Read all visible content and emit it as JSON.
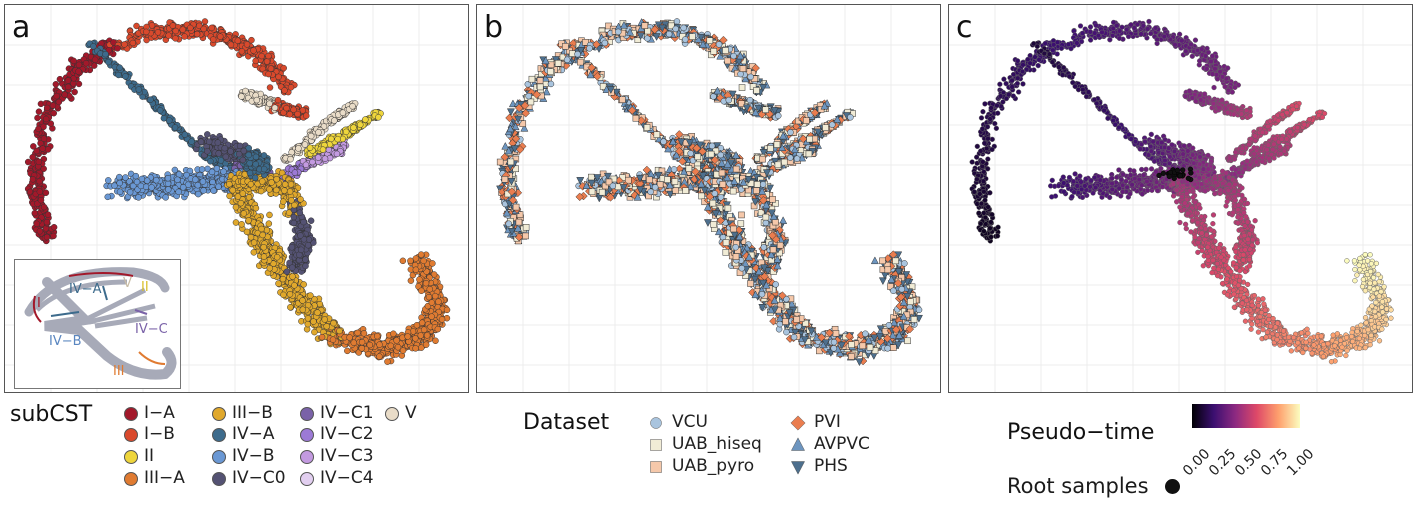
{
  "panels": [
    {
      "letter": "a",
      "inset_labels": [
        "I",
        "IV−A",
        "V",
        "II",
        "IV−B",
        "IV−C",
        "III"
      ]
    },
    {
      "letter": "b"
    },
    {
      "letter": "c"
    }
  ],
  "legend_a": {
    "title": "subCST",
    "items": [
      {
        "label": "I−A",
        "color": "#a2182a"
      },
      {
        "label": "I−B",
        "color": "#d9492c"
      },
      {
        "label": "II",
        "color": "#eed53c"
      },
      {
        "label": "III−A",
        "color": "#e07b31"
      },
      {
        "label": "III−B",
        "color": "#e0a82c"
      },
      {
        "label": "IV−A",
        "color": "#3d6b8c"
      },
      {
        "label": "IV−B",
        "color": "#6a98d4"
      },
      {
        "label": "IV−C0",
        "color": "#545273"
      },
      {
        "label": "IV−C1",
        "color": "#7a62a8"
      },
      {
        "label": "IV−C2",
        "color": "#9c7ad6"
      },
      {
        "label": "IV−C3",
        "color": "#c39ae0"
      },
      {
        "label": "IV−C4",
        "color": "#e2cff0"
      },
      {
        "label": "V",
        "color": "#e9dcc8"
      }
    ]
  },
  "legend_b": {
    "title": "Dataset",
    "items": [
      {
        "label": "VCU",
        "color": "#a9c4de",
        "shape": "circle"
      },
      {
        "label": "UAB_hiseq",
        "color": "#f1ecd6",
        "shape": "square"
      },
      {
        "label": "UAB_pyro",
        "color": "#f5c8aa",
        "shape": "square"
      },
      {
        "label": "PVI",
        "color": "#ea7d4f",
        "shape": "diamond"
      },
      {
        "label": "AVPVC",
        "color": "#6d95bf",
        "shape": "triangle-up"
      },
      {
        "label": "PHS",
        "color": "#4d6f8d",
        "shape": "triangle-down"
      }
    ]
  },
  "legend_c": {
    "title": "Pseudo−time",
    "ticks": [
      "0.00",
      "0.25",
      "0.50",
      "0.75",
      "1.00"
    ],
    "colorscale": [
      "#000004",
      "#3b0f70",
      "#8c2981",
      "#de4968",
      "#fe9f6d",
      "#fcfdbf"
    ],
    "root_label": "Root samples",
    "root_color": "#111111"
  },
  "chart_data": [
    {
      "type": "scatter",
      "panel": "a",
      "xlabel": "",
      "ylabel": "",
      "grid": true,
      "color_by": "subCST",
      "legend_position": "bottom"
    },
    {
      "type": "scatter",
      "panel": "b",
      "xlabel": "",
      "ylabel": "",
      "grid": true,
      "color_by": "Dataset",
      "legend_position": "bottom"
    },
    {
      "type": "scatter",
      "panel": "c",
      "xlabel": "",
      "ylabel": "",
      "grid": true,
      "color_by": "Pseudo−time",
      "colorscale_range": [
        0,
        1
      ],
      "legend_position": "bottom"
    }
  ]
}
